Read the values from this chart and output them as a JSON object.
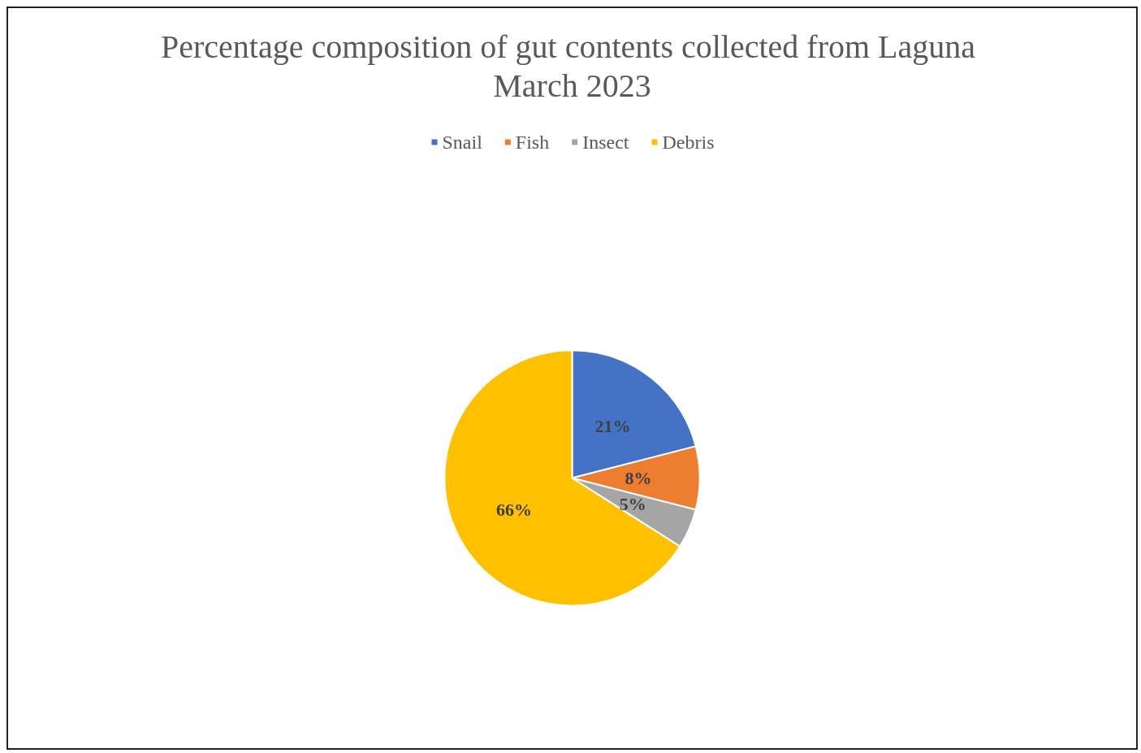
{
  "chart_data": {
    "type": "pie",
    "title": "Percentage composition of gut contents collected from Laguna March 2023",
    "categories": [
      "Snail",
      "Fish",
      "Insect",
      "Debris"
    ],
    "values": [
      21,
      8,
      5,
      66
    ],
    "colors": [
      "#4472c4",
      "#ed7d31",
      "#a5a5a5",
      "#ffc000"
    ],
    "value_labels": [
      "21%",
      "8%",
      "5%",
      "66%"
    ],
    "legend": "top"
  }
}
